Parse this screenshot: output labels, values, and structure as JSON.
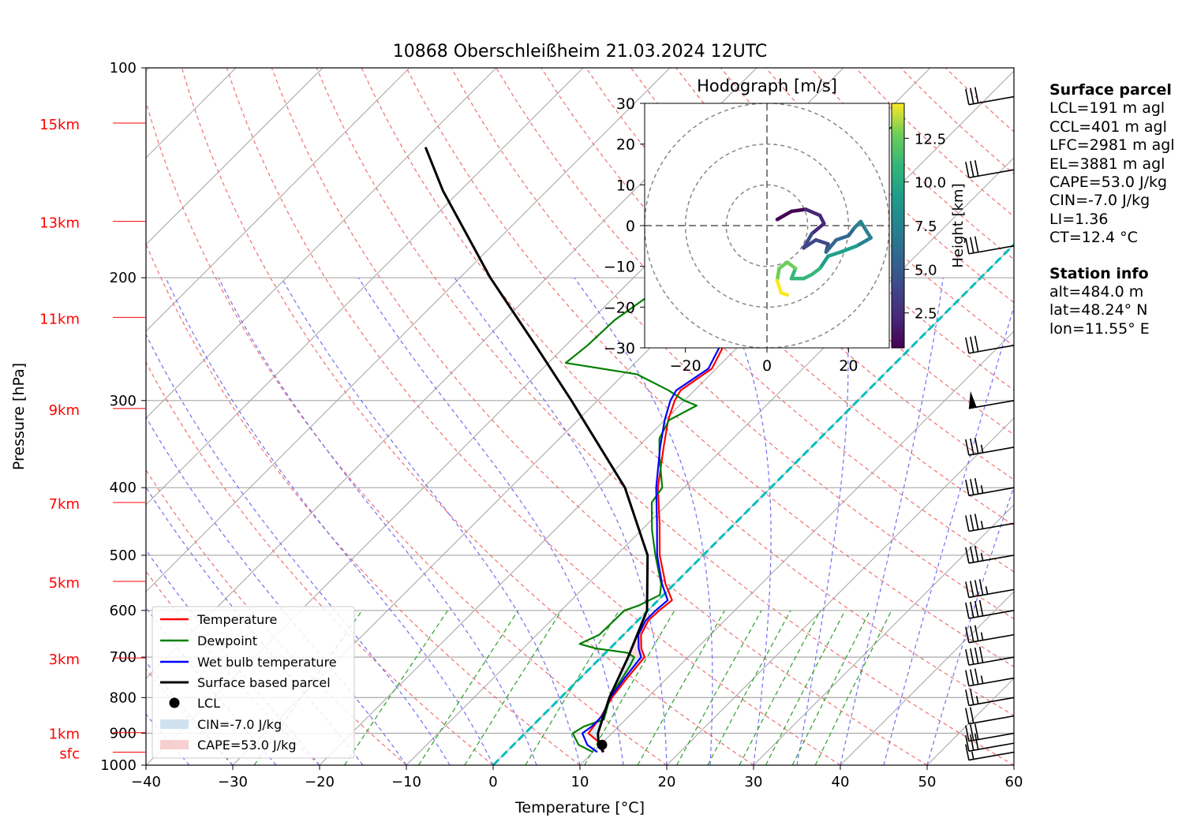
{
  "title": "10868 Oberschleißheim 21.03.2024 12UTC",
  "chart_data": {
    "type": "line",
    "subtype": "skew-T log-p diagram",
    "title": "10868 Oberschleißheim 21.03.2024 12UTC",
    "xlabel": "Temperature [°C]",
    "ylabel": "Pressure [hPa]",
    "xlim": [
      -40,
      60
    ],
    "ylim": [
      1000,
      100
    ],
    "yscale": "log",
    "grid": true,
    "x_ticks": [
      "−40",
      "−30",
      "−20",
      "−10",
      "0",
      "10",
      "20",
      "30",
      "40",
      "50",
      "60"
    ],
    "y_ticks": [
      {
        "p": 100,
        "label": "100"
      },
      {
        "p": 200,
        "label": "200"
      },
      {
        "p": 300,
        "label": "300"
      },
      {
        "p": 400,
        "label": "400"
      },
      {
        "p": 500,
        "label": "500"
      },
      {
        "p": 600,
        "label": "600"
      },
      {
        "p": 700,
        "label": "700"
      },
      {
        "p": 800,
        "label": "800"
      },
      {
        "p": 900,
        "label": "900"
      },
      {
        "p": 1000,
        "label": "1000"
      }
    ],
    "height_labels": [
      {
        "p": 958,
        "label": "sfc"
      },
      {
        "p": 898,
        "label": "1km"
      },
      {
        "p": 702,
        "label": "3km"
      },
      {
        "p": 545,
        "label": "5km"
      },
      {
        "p": 420,
        "label": "7km"
      },
      {
        "p": 308,
        "label": "9km"
      },
      {
        "p": 228,
        "label": "11km"
      },
      {
        "p": 166,
        "label": "13km"
      },
      {
        "p": 120,
        "label": "15km"
      }
    ],
    "series": [
      {
        "name": "Temperature",
        "color": "#ff0000",
        "points": [
          [
            958,
            11.2
          ],
          [
            935,
            10.2
          ],
          [
            900,
            7.3
          ],
          [
            850,
            6.8
          ],
          [
            800,
            5.9
          ],
          [
            750,
            5.4
          ],
          [
            700,
            5.0
          ],
          [
            680,
            3.6
          ],
          [
            650,
            2.0
          ],
          [
            620,
            1.2
          ],
          [
            600,
            1.3
          ],
          [
            580,
            1.6
          ],
          [
            550,
            -1.0
          ],
          [
            500,
            -5.0
          ],
          [
            450,
            -8.7
          ],
          [
            400,
            -13.0
          ],
          [
            350,
            -17.0
          ],
          [
            320,
            -19.6
          ],
          [
            300,
            -21.1
          ],
          [
            290,
            -21.6
          ],
          [
            270,
            -20.5
          ],
          [
            250,
            -21.8
          ],
          [
            230,
            -23.5
          ],
          [
            210,
            -24.0
          ],
          [
            200,
            -26.0
          ],
          [
            180,
            -26.7
          ],
          [
            160,
            -28.0
          ],
          [
            140,
            -30.5
          ],
          [
            130,
            -31.5
          ],
          [
            121,
            -32.0
          ]
        ]
      },
      {
        "name": "Dewpoint",
        "color": "#008000",
        "points": [
          [
            958,
            10.0
          ],
          [
            935,
            7.5
          ],
          [
            900,
            5.5
          ],
          [
            880,
            6.0
          ],
          [
            860,
            7.5
          ],
          [
            820,
            6.3
          ],
          [
            800,
            5.6
          ],
          [
            760,
            5.0
          ],
          [
            720,
            4.3
          ],
          [
            700,
            3.8
          ],
          [
            690,
            2.5
          ],
          [
            680,
            -1.7
          ],
          [
            670,
            -4.0
          ],
          [
            650,
            -2.8
          ],
          [
            600,
            -2.7
          ],
          [
            590,
            -1.6
          ],
          [
            570,
            -0.4
          ],
          [
            550,
            -1.5
          ],
          [
            500,
            -5.5
          ],
          [
            460,
            -8.8
          ],
          [
            420,
            -12.0
          ],
          [
            400,
            -12.5
          ],
          [
            360,
            -16.5
          ],
          [
            340,
            -18.5
          ],
          [
            320,
            -19.5
          ],
          [
            305,
            -18.0
          ],
          [
            300,
            -20.0
          ],
          [
            290,
            -23.0
          ],
          [
            275,
            -28.5
          ],
          [
            265,
            -38.0
          ],
          [
            250,
            -37.5
          ],
          [
            230,
            -37.3
          ],
          [
            210,
            -36.0
          ],
          [
            200,
            -36.5
          ],
          [
            190,
            -36.3
          ],
          [
            180,
            -36.0
          ],
          [
            165,
            -33.5
          ],
          [
            150,
            -31.5
          ],
          [
            140,
            -30.0
          ],
          [
            130,
            -29.0
          ],
          [
            121,
            -27.5
          ]
        ]
      },
      {
        "name": "Wet bulb temperature",
        "color": "#0000ff",
        "points": [
          [
            958,
            10.5
          ],
          [
            935,
            8.5
          ],
          [
            900,
            6.6
          ],
          [
            880,
            6.9
          ],
          [
            850,
            6.9
          ],
          [
            800,
            5.7
          ],
          [
            750,
            5.1
          ],
          [
            700,
            4.6
          ],
          [
            680,
            3.3
          ],
          [
            650,
            1.7
          ],
          [
            620,
            0.9
          ],
          [
            600,
            0.9
          ],
          [
            580,
            1.1
          ],
          [
            550,
            -1.4
          ],
          [
            500,
            -5.3
          ],
          [
            450,
            -9.0
          ],
          [
            400,
            -13.2
          ],
          [
            350,
            -17.4
          ],
          [
            320,
            -20.0
          ],
          [
            300,
            -21.6
          ],
          [
            290,
            -22.1
          ],
          [
            270,
            -20.9
          ],
          [
            250,
            -22.2
          ],
          [
            230,
            -23.9
          ],
          [
            210,
            -24.4
          ],
          [
            200,
            -26.4
          ],
          [
            180,
            -27.1
          ],
          [
            160,
            -28.4
          ],
          [
            140,
            -30.9
          ],
          [
            130,
            -31.9
          ],
          [
            121,
            -32.4
          ]
        ]
      },
      {
        "name": "Surface based parcel",
        "color": "#000000",
        "points": [
          [
            958,
            11.2
          ],
          [
            935,
            9.8
          ],
          [
            900,
            8.4
          ],
          [
            800,
            5.6
          ],
          [
            700,
            3.1
          ],
          [
            600,
            -0.1
          ],
          [
            500,
            -6.4
          ],
          [
            400,
            -16.8
          ],
          [
            300,
            -33.0
          ],
          [
            250,
            -43.5
          ],
          [
            200,
            -56.5
          ],
          [
            150,
            -72.0
          ],
          [
            130,
            -79.0
          ]
        ]
      }
    ],
    "lcl_point": {
      "name": "LCL",
      "p": 935,
      "t": 10.2
    },
    "cin_patch": {
      "name": "CIN=-7.0 J/kg"
    },
    "cape_patch": {
      "name": "CAPE=53.0 J/kg"
    },
    "zero_isotherm": {
      "name": "0°C isotherm",
      "color": "#00bfbf"
    },
    "wind_barbs": [
      {
        "p": 958,
        "speed_kt": 15
      },
      {
        "p": 930,
        "speed_kt": 30
      },
      {
        "p": 900,
        "speed_kt": 30
      },
      {
        "p": 850,
        "speed_kt": 20
      },
      {
        "p": 800,
        "speed_kt": 25
      },
      {
        "p": 750,
        "speed_kt": 35
      },
      {
        "p": 700,
        "speed_kt": 40
      },
      {
        "p": 650,
        "speed_kt": 35
      },
      {
        "p": 600,
        "speed_kt": 40
      },
      {
        "p": 560,
        "speed_kt": 45
      },
      {
        "p": 500,
        "speed_kt": 35
      },
      {
        "p": 450,
        "speed_kt": 35
      },
      {
        "p": 400,
        "speed_kt": 35
      },
      {
        "p": 350,
        "speed_kt": 35
      },
      {
        "p": 300,
        "speed_kt": 50
      },
      {
        "p": 250,
        "speed_kt": 30
      },
      {
        "p": 180,
        "speed_kt": 30
      },
      {
        "p": 140,
        "speed_kt": 30
      },
      {
        "p": 110,
        "speed_kt": 30
      }
    ],
    "legend": {
      "position": "lower-left",
      "entries": [
        "Temperature",
        "Dewpoint",
        "Wet bulb temperature",
        "Surface based parcel",
        "LCL",
        "CIN=-7.0 J/kg",
        "CAPE=53.0 J/kg"
      ]
    },
    "hodograph": {
      "title": "Hodograph [m/s]",
      "xlim": [
        -30,
        30
      ],
      "ylim": [
        -30,
        30
      ],
      "x_ticks": [
        "−20",
        "0",
        "20"
      ],
      "y_ticks": [
        "30",
        "20",
        "10",
        "0",
        "−10",
        "−20",
        "−30"
      ],
      "rings": [
        10,
        20,
        30
      ],
      "colorbar_label": "Height [km]",
      "colorbar_ticks": [
        "2.5",
        "5.0",
        "7.5",
        "10.0",
        "12.5"
      ],
      "colorbar_range": [
        0.5,
        14.5
      ],
      "points": [
        {
          "h": 0.5,
          "u": 2.5,
          "v": 1.5
        },
        {
          "h": 1.0,
          "u": 6.0,
          "v": 3.5
        },
        {
          "h": 1.5,
          "u": 9.5,
          "v": 4.0
        },
        {
          "h": 2.0,
          "u": 13.0,
          "v": 2.5
        },
        {
          "h": 2.5,
          "u": 14.0,
          "v": 0.5
        },
        {
          "h": 3.0,
          "u": 11.0,
          "v": -2.0
        },
        {
          "h": 3.5,
          "u": 9.0,
          "v": -5.5
        },
        {
          "h": 4.0,
          "u": 12.0,
          "v": -3.5
        },
        {
          "h": 4.5,
          "u": 15.0,
          "v": -4.5
        },
        {
          "h": 5.0,
          "u": 14.5,
          "v": -6.5
        },
        {
          "h": 5.5,
          "u": 17.0,
          "v": -3.5
        },
        {
          "h": 6.0,
          "u": 20.0,
          "v": -2.5
        },
        {
          "h": 6.5,
          "u": 21.5,
          "v": -0.5
        },
        {
          "h": 7.0,
          "u": 23.0,
          "v": 1.0
        },
        {
          "h": 7.5,
          "u": 24.5,
          "v": -1.5
        },
        {
          "h": 8.0,
          "u": 25.5,
          "v": -3.0
        },
        {
          "h": 8.5,
          "u": 22.0,
          "v": -5.0
        },
        {
          "h": 9.0,
          "u": 18.0,
          "v": -6.5
        },
        {
          "h": 9.5,
          "u": 15.0,
          "v": -7.5
        },
        {
          "h": 10.0,
          "u": 13.0,
          "v": -10.5
        },
        {
          "h": 10.5,
          "u": 11.0,
          "v": -12.0
        },
        {
          "h": 11.0,
          "u": 9.0,
          "v": -13.0
        },
        {
          "h": 11.5,
          "u": 6.0,
          "v": -13.0
        },
        {
          "h": 12.0,
          "u": 7.0,
          "v": -10.5
        },
        {
          "h": 12.5,
          "u": 5.0,
          "v": -9.0
        },
        {
          "h": 13.0,
          "u": 3.0,
          "v": -10.5
        },
        {
          "h": 13.5,
          "u": 2.5,
          "v": -13.5
        },
        {
          "h": 14.0,
          "u": 3.5,
          "v": -16.5
        },
        {
          "h": 14.5,
          "u": 5.0,
          "v": -17.0
        }
      ]
    }
  },
  "surface_parcel": {
    "heading": "Surface parcel",
    "lines": [
      "LCL=191 m agl",
      "CCL=401 m agl",
      "LFC=2981 m agl",
      "EL=3881 m agl",
      "CAPE=53.0 J/kg",
      "CIN=-7.0 J/kg",
      "LI=1.36",
      "CT=12.4 °C"
    ]
  },
  "station_info": {
    "heading": "Station info",
    "lines": [
      "alt=484.0 m",
      "lat=48.24° N",
      "lon=11.55° E"
    ]
  }
}
